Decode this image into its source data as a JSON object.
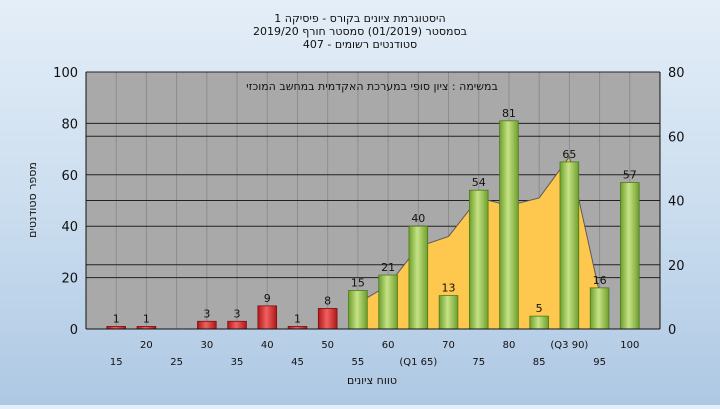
{
  "chart_data": {
    "type": "bar",
    "title": "היסטוגרמת ציונים בקורס - פיסיקה 1",
    "subtitle_lines": [
      "בסמסטר  (01/2019)  סמסטר חורף  2019/20",
      "סטודנטים רשומים - 407"
    ],
    "annotation": "במשימה : ציון סופי במערכת האקדמית במחשב המוכזי",
    "xlabel": "טווח ציונים",
    "ylabel": "מספר סטודנטים",
    "ylim": [
      0,
      100
    ],
    "yticks": [
      0,
      20,
      40,
      60,
      80,
      100
    ],
    "y2lim": [
      0,
      80
    ],
    "y2ticks": [
      0,
      20,
      40,
      60,
      80
    ],
    "categories": [
      15,
      20,
      25,
      30,
      35,
      40,
      45,
      50,
      55,
      60,
      65,
      70,
      75,
      80,
      85,
      90,
      95,
      100
    ],
    "tick_labels": [
      "15",
      "20",
      "25",
      "30",
      "35",
      "40",
      "45",
      "50",
      "55",
      "60",
      "(Q1 65)",
      "70",
      "75",
      "80",
      "85",
      "(Q3 90)",
      "95",
      "100"
    ],
    "values": [
      1,
      1,
      null,
      3,
      3,
      9,
      1,
      8,
      15,
      21,
      40,
      13,
      54,
      81,
      5,
      65,
      16,
      57
    ],
    "value_labels": [
      "1",
      "1",
      "",
      "3",
      "3",
      "9",
      "1",
      "8",
      "15",
      "21",
      "40",
      "13",
      "54",
      "81",
      "5",
      "65",
      "16",
      "57"
    ],
    "area_series": {
      "x": [
        55,
        60,
        65,
        70,
        75,
        80,
        85,
        90,
        95
      ],
      "values": [
        10,
        17,
        32,
        36,
        51,
        48,
        51,
        67,
        14
      ]
    },
    "colors": {
      "fail": "#d92b2b",
      "pass": "#8cc040",
      "area": "#fdc84d",
      "plot_bg": "#a9a9a9"
    },
    "pass_threshold": 55
  }
}
